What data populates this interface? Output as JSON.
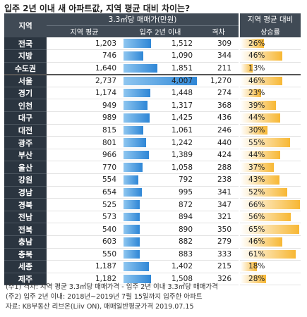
{
  "title": "입주 2년 이내 새 아파트값, 지역 평균 대비 차이는?",
  "headers": {
    "region": "지역",
    "group": "3.3㎡당 매매가(만원)",
    "avg": "지역 평균",
    "new": "입주 2년 이내",
    "gap": "격차",
    "ratio_line1": "지역 평균 대비",
    "ratio_line2": "상승률"
  },
  "chart_data": {
    "type": "table",
    "columns": [
      "지역",
      "지역 평균",
      "입주 2년 이내",
      "격차",
      "지역 평균 대비 상승률"
    ],
    "rows": [
      {
        "region": "전국",
        "avg": "1,203",
        "new": "1,512",
        "new_value": 1512,
        "gap": "309",
        "pct": "26%",
        "pct_value": 26
      },
      {
        "region": "지방",
        "avg": "746",
        "new": "1,090",
        "new_value": 1090,
        "gap": "344",
        "pct": "46%",
        "pct_value": 46
      },
      {
        "region": "수도권",
        "avg": "1,640",
        "new": "1,851",
        "new_value": 1851,
        "gap": "211",
        "pct": "13%",
        "pct_value": 13
      },
      {
        "region": "서울",
        "avg": "2,737",
        "new": "4,007",
        "new_value": 4007,
        "gap": "1,270",
        "pct": "46%",
        "pct_value": 46
      },
      {
        "region": "경기",
        "avg": "1,174",
        "new": "1,448",
        "new_value": 1448,
        "gap": "274",
        "pct": "23%",
        "pct_value": 23
      },
      {
        "region": "인천",
        "avg": "949",
        "new": "1,317",
        "new_value": 1317,
        "gap": "368",
        "pct": "39%",
        "pct_value": 39
      },
      {
        "region": "대구",
        "avg": "989",
        "new": "1,425",
        "new_value": 1425,
        "gap": "436",
        "pct": "44%",
        "pct_value": 44
      },
      {
        "region": "대전",
        "avg": "815",
        "new": "1,061",
        "new_value": 1061,
        "gap": "246",
        "pct": "30%",
        "pct_value": 30
      },
      {
        "region": "광주",
        "avg": "801",
        "new": "1,242",
        "new_value": 1242,
        "gap": "440",
        "pct": "55%",
        "pct_value": 55
      },
      {
        "region": "부산",
        "avg": "966",
        "new": "1,389",
        "new_value": 1389,
        "gap": "424",
        "pct": "44%",
        "pct_value": 44
      },
      {
        "region": "울산",
        "avg": "770",
        "new": "1,058",
        "new_value": 1058,
        "gap": "288",
        "pct": "37%",
        "pct_value": 37
      },
      {
        "region": "강원",
        "avg": "554",
        "new": "792",
        "new_value": 792,
        "gap": "238",
        "pct": "43%",
        "pct_value": 43
      },
      {
        "region": "경남",
        "avg": "654",
        "new": "995",
        "new_value": 995,
        "gap": "341",
        "pct": "52%",
        "pct_value": 52
      },
      {
        "region": "경북",
        "avg": "525",
        "new": "872",
        "new_value": 872,
        "gap": "347",
        "pct": "66%",
        "pct_value": 66
      },
      {
        "region": "전남",
        "avg": "573",
        "new": "894",
        "new_value": 894,
        "gap": "321",
        "pct": "56%",
        "pct_value": 56
      },
      {
        "region": "전북",
        "avg": "540",
        "new": "890",
        "new_value": 890,
        "gap": "350",
        "pct": "65%",
        "pct_value": 65
      },
      {
        "region": "충남",
        "avg": "603",
        "new": "882",
        "new_value": 882,
        "gap": "279",
        "pct": "46%",
        "pct_value": 46
      },
      {
        "region": "충북",
        "avg": "550",
        "new": "883",
        "new_value": 883,
        "gap": "333",
        "pct": "61%",
        "pct_value": 61
      },
      {
        "region": "세종",
        "avg": "1,187",
        "new": "1,402",
        "new_value": 1402,
        "gap": "215",
        "pct": "18%",
        "pct_value": 18
      },
      {
        "region": "제주",
        "avg": "1,182",
        "new": "1,508",
        "new_value": 1508,
        "gap": "326",
        "pct": "28%",
        "pct_value": 28
      }
    ]
  },
  "notes": [
    "(주1) 격차: 지역 평균 3.3㎡당 매매가격 - 입주 2년 이내 3.3㎡당 매매가격",
    "(주2) 입주 2년 이내: 2018년~2019년 7월 15일까지 입주한 아파트",
    "자료: KB부동산 리브온(Liiv ON), 매매일반평균가격 2019.07.15"
  ],
  "colors": {
    "header_bg": "#404a55",
    "region_bg": "#2b3540",
    "blue_bar": "#2e86d6",
    "orange_bar": "#f7b733"
  }
}
